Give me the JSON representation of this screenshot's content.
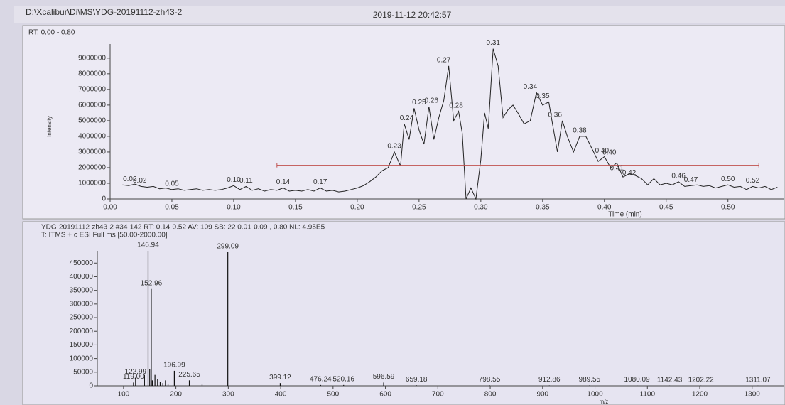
{
  "window": {
    "path": "D:\\Xcalibur\\Di\\MS\\YDG-20191112-zh43-2",
    "datetime": "2019-11-12 20:42:57"
  },
  "chart_data": [
    {
      "type": "line",
      "title": "RT: 0.00 - 0.80",
      "y_label": "Intensity",
      "x_label": "Time (min)",
      "color": "#222222",
      "xlim": [
        0,
        0.545
      ],
      "ylim": [
        0,
        9900000
      ],
      "xticks": [
        {
          "value": 0,
          "label": "0.00"
        },
        {
          "value": 0.05,
          "label": "0.05"
        },
        {
          "value": 0.1,
          "label": "0.10"
        },
        {
          "value": 0.15,
          "label": "0.15"
        },
        {
          "value": 0.2,
          "label": "0.20"
        },
        {
          "value": 0.25,
          "label": "0.25"
        },
        {
          "value": 0.3,
          "label": "0.30"
        },
        {
          "value": 0.35,
          "label": "0.35"
        },
        {
          "value": 0.4,
          "label": "0.40"
        },
        {
          "value": 0.45,
          "label": "0.45"
        },
        {
          "value": 0.5,
          "label": "0.50"
        }
      ],
      "yticks": [
        0,
        1000000,
        2000000,
        3000000,
        4000000,
        5000000,
        6000000,
        7000000,
        8000000,
        9000000
      ],
      "x": [
        0.01,
        0.015,
        0.02,
        0.025,
        0.03,
        0.035,
        0.04,
        0.045,
        0.05,
        0.055,
        0.06,
        0.065,
        0.07,
        0.075,
        0.08,
        0.085,
        0.09,
        0.095,
        0.1,
        0.105,
        0.11,
        0.115,
        0.12,
        0.125,
        0.13,
        0.135,
        0.14,
        0.145,
        0.15,
        0.155,
        0.16,
        0.165,
        0.17,
        0.175,
        0.18,
        0.185,
        0.19,
        0.195,
        0.2,
        0.205,
        0.21,
        0.215,
        0.22,
        0.225,
        0.23,
        0.235,
        0.238,
        0.242,
        0.246,
        0.25,
        0.254,
        0.258,
        0.262,
        0.266,
        0.27,
        0.274,
        0.278,
        0.282,
        0.285,
        0.288,
        0.292,
        0.296,
        0.3,
        0.303,
        0.306,
        0.31,
        0.314,
        0.318,
        0.322,
        0.326,
        0.33,
        0.335,
        0.34,
        0.345,
        0.35,
        0.355,
        0.358,
        0.362,
        0.366,
        0.37,
        0.375,
        0.38,
        0.385,
        0.39,
        0.395,
        0.4,
        0.405,
        0.41,
        0.415,
        0.42,
        0.425,
        0.43,
        0.435,
        0.44,
        0.445,
        0.45,
        0.455,
        0.46,
        0.465,
        0.47,
        0.475,
        0.48,
        0.485,
        0.49,
        0.495,
        0.5,
        0.505,
        0.51,
        0.515,
        0.52,
        0.525,
        0.53,
        0.535,
        0.54
      ],
      "values": [
        900000,
        850000,
        950000,
        800000,
        750000,
        800000,
        650000,
        700000,
        600000,
        650000,
        550000,
        600000,
        650000,
        550000,
        600000,
        550000,
        600000,
        700000,
        850000,
        600000,
        800000,
        550000,
        650000,
        500000,
        600000,
        550000,
        700000,
        500000,
        550000,
        500000,
        600000,
        500000,
        700000,
        500000,
        550000,
        450000,
        500000,
        600000,
        700000,
        850000,
        1100000,
        1400000,
        1800000,
        2000000,
        3000000,
        2100000,
        4800000,
        3800000,
        5800000,
        4400000,
        3500000,
        5900000,
        3800000,
        5200000,
        6300000,
        8500000,
        5000000,
        5600000,
        4200000,
        0,
        700000,
        0,
        2500000,
        5500000,
        4500000,
        9600000,
        8500000,
        5200000,
        5700000,
        6000000,
        5500000,
        4800000,
        5000000,
        6800000,
        6000000,
        6200000,
        4800000,
        3000000,
        5000000,
        4000000,
        3000000,
        4000000,
        4000000,
        3200000,
        2400000,
        2700000,
        2000000,
        2300000,
        1400000,
        1600000,
        1500000,
        1300000,
        900000,
        1300000,
        900000,
        1000000,
        900000,
        1100000,
        800000,
        850000,
        900000,
        800000,
        850000,
        700000,
        800000,
        900000,
        750000,
        800000,
        600000,
        800000,
        700000,
        800000,
        600000,
        750000
      ],
      "peaks": [
        {
          "x": 0.016,
          "y": 900000,
          "label": "0.02"
        },
        {
          "x": 0.024,
          "y": 800000,
          "label": "0.02"
        },
        {
          "x": 0.05,
          "y": 600000,
          "label": "0.05"
        },
        {
          "x": 0.1,
          "y": 850000,
          "label": "0.10"
        },
        {
          "x": 0.11,
          "y": 800000,
          "label": "0.11"
        },
        {
          "x": 0.14,
          "y": 700000,
          "label": "0.14"
        },
        {
          "x": 0.17,
          "y": 700000,
          "label": "0.17"
        },
        {
          "x": 0.23,
          "y": 3000000,
          "label": "0.23"
        },
        {
          "x": 0.24,
          "y": 4800000,
          "label": "0.24"
        },
        {
          "x": 0.25,
          "y": 5800000,
          "label": "0.25"
        },
        {
          "x": 0.26,
          "y": 5900000,
          "label": "0.26"
        },
        {
          "x": 0.27,
          "y": 8500000,
          "label": "0.27"
        },
        {
          "x": 0.28,
          "y": 5600000,
          "label": "0.28"
        },
        {
          "x": 0.31,
          "y": 9600000,
          "label": "0.31"
        },
        {
          "x": 0.34,
          "y": 6800000,
          "label": "0.34"
        },
        {
          "x": 0.35,
          "y": 6200000,
          "label": "0.35"
        },
        {
          "x": 0.36,
          "y": 5000000,
          "label": "0.36"
        },
        {
          "x": 0.38,
          "y": 4000000,
          "label": "0.38"
        },
        {
          "x": 0.398,
          "y": 2700000,
          "label": "0.40"
        },
        {
          "x": 0.404,
          "y": 2600000,
          "label": "0.40"
        },
        {
          "x": 0.41,
          "y": 1600000,
          "label": "0.41"
        },
        {
          "x": 0.42,
          "y": 1300000,
          "label": "0.42"
        },
        {
          "x": 0.46,
          "y": 1100000,
          "label": "0.46"
        },
        {
          "x": 0.47,
          "y": 850000,
          "label": "0.47"
        },
        {
          "x": 0.5,
          "y": 900000,
          "label": "0.50"
        },
        {
          "x": 0.52,
          "y": 800000,
          "label": "0.52"
        }
      ],
      "range_marker": {
        "x": [
          0.135,
          0.525
        ],
        "y": 2150000,
        "color": "#c0504d"
      }
    },
    {
      "type": "stick",
      "header_lines": [
        "YDG-20191112-zh43-2 #34-142  RT: 0.14-0.52  AV: 109  SB: 22  0.01-0.09 , 0.80  NL: 4.95E5",
        "T: ITMS + c ESI Full ms [50.00-2000.00]"
      ],
      "x_label": "m/z",
      "color": "#111111",
      "xlim": [
        50,
        1360
      ],
      "ylim": [
        0,
        495000
      ],
      "xticks": [
        100,
        200,
        300,
        400,
        500,
        600,
        700,
        800,
        900,
        1000,
        1100,
        1200,
        1300
      ],
      "yticks": [
        0,
        50000,
        100000,
        150000,
        200000,
        250000,
        300000,
        350000,
        400000,
        450000
      ],
      "x": [
        119.0,
        122.99,
        140,
        146.94,
        150,
        152.96,
        155,
        160,
        165,
        170,
        175,
        180,
        185,
        196.99,
        225.65,
        250,
        299.09,
        399.12,
        476.24,
        520.16,
        596.59,
        659.18,
        798.55,
        912.86,
        989.55,
        1080.09,
        1142.43,
        1202.22,
        1311.07
      ],
      "values": [
        12000,
        30000,
        40000,
        495000,
        60000,
        355000,
        20000,
        40000,
        25000,
        15000,
        10000,
        20000,
        8000,
        55000,
        20000,
        5000,
        490000,
        10000,
        3000,
        3000,
        12000,
        2000,
        2000,
        1500,
        1500,
        1500,
        1000,
        1000,
        1000
      ],
      "x_labels": [
        "119.00",
        "122.99",
        null,
        "146.94",
        null,
        "152.96",
        null,
        null,
        null,
        null,
        null,
        null,
        null,
        "196.99",
        "225.65",
        null,
        "299.09",
        "399.12",
        "476.24",
        "520.16",
        "596.59",
        "659.18",
        "798.55",
        "912.86",
        "989.55",
        "1080.09",
        "1142.43",
        "1202.22",
        "1311.07"
      ]
    }
  ]
}
